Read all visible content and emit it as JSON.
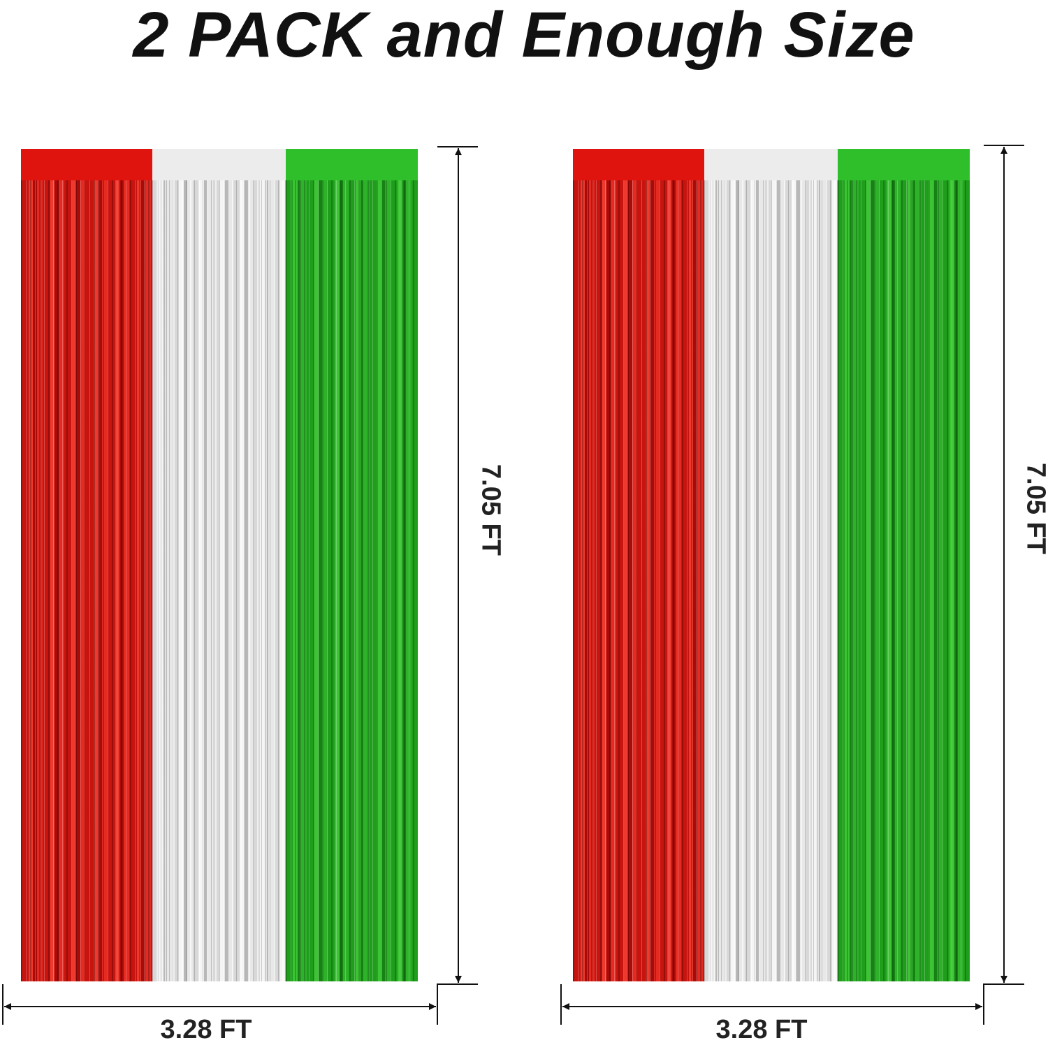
{
  "title": "2 PACK and Enough Size",
  "curtains": [
    {
      "height_label": "7.05 FT",
      "width_label": "3.28 FT",
      "colors": [
        "#e0140f",
        "#ececec",
        "#2fbf2a"
      ]
    },
    {
      "height_label": "7.05 FT",
      "width_label": "3.28 FT",
      "colors": [
        "#e0140f",
        "#ececec",
        "#2fbf2a"
      ]
    }
  ]
}
